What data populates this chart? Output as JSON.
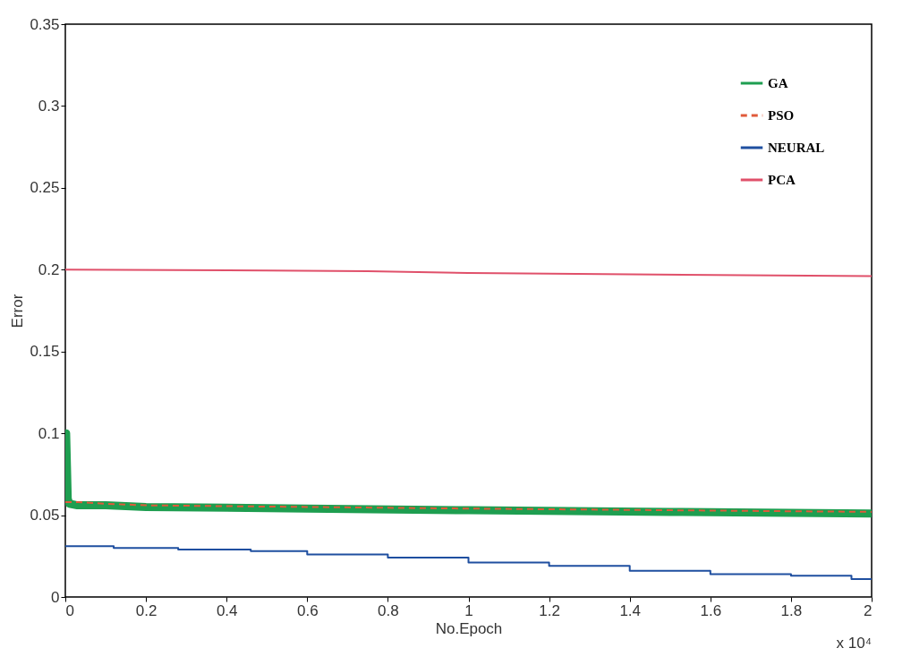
{
  "chart_data": {
    "type": "line",
    "xlabel": "No.Epoch",
    "ylabel": "Error",
    "annotations": [
      "x 10⁴"
    ],
    "xlim": [
      0,
      2
    ],
    "xticks": [
      0,
      0.2,
      0.4,
      0.6,
      0.8,
      1,
      1.2,
      1.4,
      1.6,
      1.8,
      2
    ],
    "ylim": [
      0,
      0.35
    ],
    "yticks": [
      0,
      0.05,
      0.1,
      0.15,
      0.2,
      0.25,
      0.3,
      0.35
    ],
    "grid": false,
    "legend": "top right",
    "series": [
      {
        "name": "GA",
        "color": "#1e9e50",
        "x": [
          0,
          0.002,
          0.004,
          0.006,
          0.01,
          0.03,
          0.1,
          0.2,
          0.6,
          1.0,
          1.5,
          2
        ],
        "values": [
          0.06,
          0.1,
          0.08,
          0.06,
          0.057,
          0.056,
          0.056,
          0.055,
          0.054,
          0.053,
          0.052,
          0.051
        ]
      },
      {
        "name": "PSO",
        "color": "#e05a3a",
        "line_style": "dashed",
        "x": [
          0,
          0.03,
          0.1,
          0.2,
          0.6,
          1.0,
          1.5,
          2
        ],
        "values": [
          0.058,
          0.058,
          0.057,
          0.056,
          0.055,
          0.054,
          0.053,
          0.052
        ]
      },
      {
        "name": "NEURAL",
        "color": "#1f4fa0",
        "type": "step",
        "x": [
          0,
          0.12,
          0.28,
          0.46,
          0.6,
          0.8,
          1.0,
          1.2,
          1.4,
          1.6,
          1.8,
          1.95,
          2
        ],
        "values": [
          0.031,
          0.03,
          0.029,
          0.028,
          0.026,
          0.024,
          0.021,
          0.019,
          0.016,
          0.014,
          0.013,
          0.011,
          0.011
        ]
      },
      {
        "name": "PCA",
        "color": "#e0506a",
        "x": [
          0,
          0.5,
          0.75,
          1.0,
          2
        ],
        "values": [
          0.2,
          0.1995,
          0.199,
          0.198,
          0.196
        ]
      }
    ]
  }
}
